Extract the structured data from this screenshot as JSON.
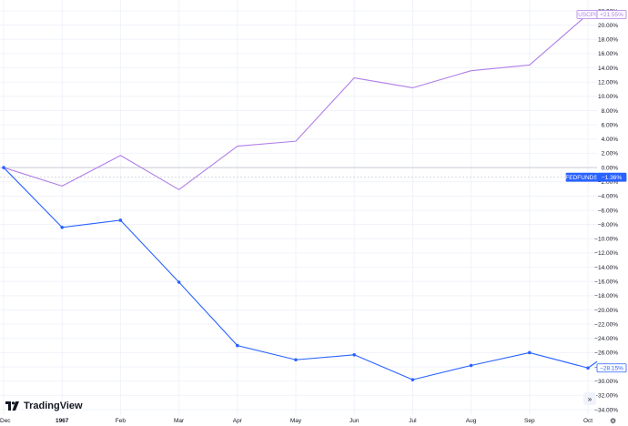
{
  "chart_data": {
    "type": "line",
    "x": [
      "Dec",
      "1967",
      "Feb",
      "Mar",
      "Apr",
      "May",
      "Jun",
      "Jul",
      "Aug",
      "Sep",
      "Oct"
    ],
    "bold_ticks": [
      "1967"
    ],
    "ylim": [
      -34,
      22
    ],
    "y_ticks": [
      "22.00%",
      "20.00%",
      "18.00%",
      "16.00%",
      "14.00%",
      "12.00%",
      "10.00%",
      "8.00%",
      "6.00%",
      "4.00%",
      "2.00%",
      "0.00%",
      "−2.00%",
      "−4.00%",
      "−6.00%",
      "−8.00%",
      "−10.00%",
      "−12.00%",
      "−14.00%",
      "−16.00%",
      "−18.00%",
      "−20.00%",
      "−22.00%",
      "−24.00%",
      "−26.00%",
      "−28.00%",
      "−30.00%",
      "−32.00%",
      "−34.00%"
    ],
    "series": [
      {
        "name": "USCPI",
        "color": "#b07ee8",
        "values": [
          0.0,
          -2.6,
          1.7,
          -3.1,
          3.0,
          3.7,
          12.6,
          11.2,
          13.6,
          14.4,
          21.55
        ],
        "markers": false,
        "last_label": "+21.55%"
      },
      {
        "name": "FEDFUNDS",
        "color": "#2962ff",
        "values": [
          0.0,
          -8.4,
          -7.4,
          -16.1,
          -25.0,
          -27.0,
          -26.3,
          -29.8,
          -27.8,
          -26.0,
          -28.15
        ],
        "markers": true,
        "last_label": "−28.15%"
      }
    ],
    "price_line": {
      "label": "FEDFUNDS",
      "value_label": "−1.36%",
      "value": -1.36,
      "color": "#2962ff"
    },
    "zero_line": 0,
    "grid": true
  },
  "branding": {
    "logo_text": "TradingView"
  },
  "icons": {
    "scroll": "double-chevron-right-icon",
    "settings": "gear-icon"
  }
}
